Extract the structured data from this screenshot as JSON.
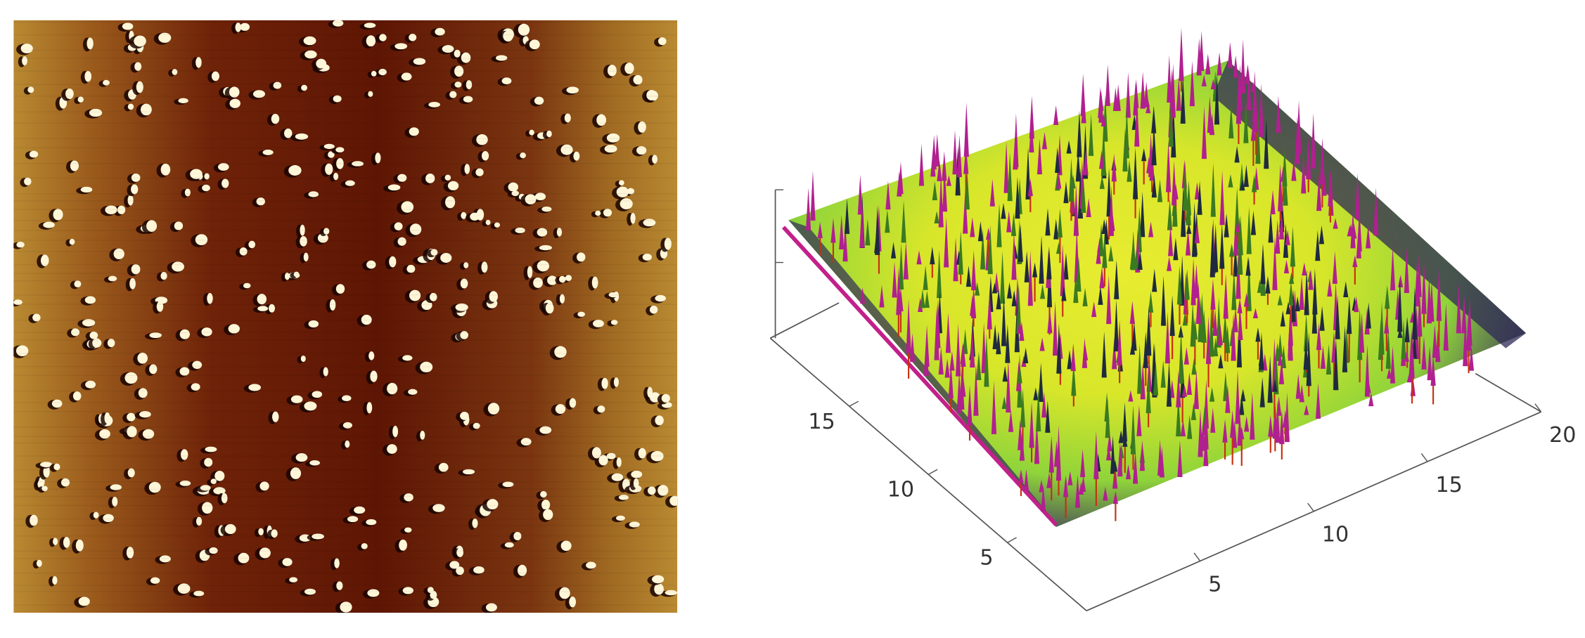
{
  "surface_plot": {
    "x_ticks": [
      5,
      10,
      15,
      20
    ],
    "y_ticks": [
      5,
      10,
      15
    ],
    "axis_max": 20
  }
}
